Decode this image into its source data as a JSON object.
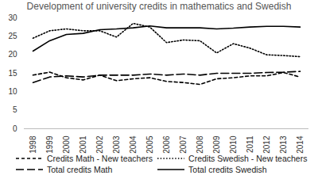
{
  "chart_data": {
    "type": "line",
    "title": "Development of university credits in mathematics and Swedish",
    "categories": [
      "1998",
      "1999",
      "2000",
      "2001",
      "2002",
      "2003",
      "2004",
      "2005",
      "2006",
      "2007",
      "2008",
      "2009",
      "2010",
      "2011",
      "2012",
      "2013",
      "2014"
    ],
    "series": [
      {
        "name": "Credits Math - New teachers",
        "color": "#000000",
        "line_style": "dashed",
        "values": [
          14.5,
          15.3,
          13.8,
          13.2,
          14.5,
          13.0,
          13.5,
          13.8,
          12.8,
          12.5,
          12.0,
          13.5,
          13.8,
          14.3,
          14.3,
          15.2,
          14.0
        ]
      },
      {
        "name": "Credits Swedish - New teachers",
        "color": "#000000",
        "line_style": "dotted",
        "values": [
          24.5,
          26.5,
          27.0,
          26.5,
          26.5,
          24.8,
          28.5,
          27.5,
          23.3,
          24.0,
          23.8,
          20.5,
          23.0,
          21.8,
          20.0,
          19.8,
          19.5
        ]
      },
      {
        "name": "Total credits Math",
        "color": "#000000",
        "line_style": "longdash",
        "values": [
          12.5,
          14.0,
          14.3,
          14.0,
          14.5,
          14.5,
          14.5,
          14.8,
          14.5,
          14.8,
          14.5,
          15.0,
          15.0,
          15.0,
          15.2,
          15.3,
          15.5
        ]
      },
      {
        "name": "Total credits Swedish",
        "color": "#000000",
        "line_style": "solid",
        "values": [
          21.0,
          23.8,
          25.5,
          25.8,
          26.8,
          27.0,
          27.3,
          27.8,
          27.3,
          27.3,
          27.3,
          27.0,
          27.2,
          27.5,
          27.7,
          27.7,
          27.5
        ]
      }
    ],
    "ylim": [
      0,
      30
    ],
    "yticks": [
      0,
      5,
      10,
      15,
      20,
      25,
      30
    ],
    "grid": false,
    "legend": "bottom"
  }
}
